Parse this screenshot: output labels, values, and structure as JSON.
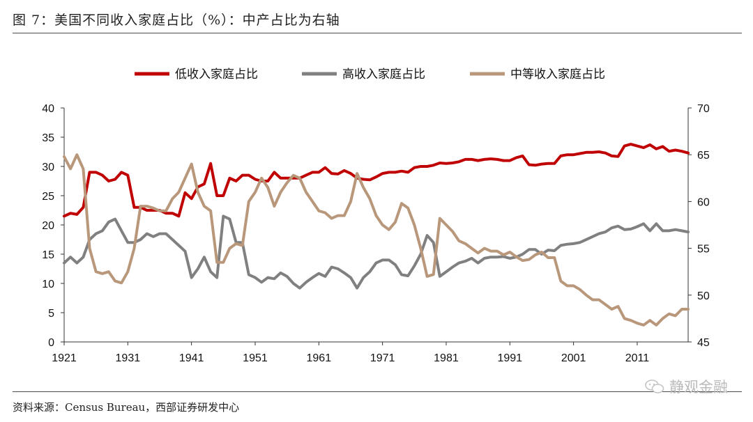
{
  "header": {
    "title": "图 7：美国不同收入家庭占比（%）：中产占比为右轴"
  },
  "footer": {
    "source": "资料来源：Census Bureau，西部证券研发中心",
    "watermark": "静观金融"
  },
  "chart_data": {
    "type": "line",
    "title": "美国不同收入家庭占比（%）：中产占比为右轴",
    "x_ticks": [
      "1921",
      "1931",
      "1941",
      "1951",
      "1961",
      "1971",
      "1981",
      "1991",
      "2001",
      "2011"
    ],
    "xlim": [
      1921,
      2019
    ],
    "y_left": {
      "min": 0,
      "max": 40,
      "ticks": [
        "0",
        "5",
        "10",
        "15",
        "20",
        "25",
        "30",
        "35",
        "40"
      ]
    },
    "y_right": {
      "min": 45,
      "max": 70,
      "ticks": [
        "45",
        "50",
        "55",
        "60",
        "65",
        "70"
      ]
    },
    "grid": false,
    "legend_position": "top",
    "series": [
      {
        "name": "低收入家庭占比",
        "axis": "left",
        "color": "#c00000",
        "points": [
          [
            1921,
            21.5
          ],
          [
            1922,
            22
          ],
          [
            1923,
            21.8
          ],
          [
            1924,
            23
          ],
          [
            1925,
            29
          ],
          [
            1926,
            29
          ],
          [
            1927,
            28.5
          ],
          [
            1928,
            27.5
          ],
          [
            1929,
            27.8
          ],
          [
            1930,
            29
          ],
          [
            1931,
            28.5
          ],
          [
            1932,
            23
          ],
          [
            1933,
            23
          ],
          [
            1934,
            22.5
          ],
          [
            1935,
            22.5
          ],
          [
            1936,
            22.5
          ],
          [
            1937,
            22
          ],
          [
            1938,
            22
          ],
          [
            1939,
            21.5
          ],
          [
            1940,
            25.5
          ],
          [
            1941,
            24.5
          ],
          [
            1942,
            26.5
          ],
          [
            1943,
            27
          ],
          [
            1944,
            30.5
          ],
          [
            1945,
            25
          ],
          [
            1946,
            25
          ],
          [
            1947,
            28
          ],
          [
            1948,
            27.5
          ],
          [
            1949,
            28.5
          ],
          [
            1950,
            28.5
          ],
          [
            1951,
            27.8
          ],
          [
            1952,
            27.5
          ],
          [
            1953,
            27.5
          ],
          [
            1954,
            29
          ],
          [
            1955,
            28
          ],
          [
            1956,
            28
          ],
          [
            1957,
            28
          ],
          [
            1958,
            28
          ],
          [
            1959,
            28.5
          ],
          [
            1960,
            29
          ],
          [
            1961,
            29
          ],
          [
            1962,
            29.8
          ],
          [
            1963,
            28.8
          ],
          [
            1964,
            28.7
          ],
          [
            1965,
            29.3
          ],
          [
            1966,
            28.8
          ],
          [
            1967,
            28
          ],
          [
            1968,
            27.8
          ],
          [
            1969,
            27.7
          ],
          [
            1970,
            28.2
          ],
          [
            1971,
            28.8
          ],
          [
            1972,
            29
          ],
          [
            1973,
            29
          ],
          [
            1974,
            29.2
          ],
          [
            1975,
            29
          ],
          [
            1976,
            29.8
          ],
          [
            1977,
            30
          ],
          [
            1978,
            30
          ],
          [
            1979,
            30.2
          ],
          [
            1980,
            30.6
          ],
          [
            1981,
            30.5
          ],
          [
            1982,
            30.6
          ],
          [
            1983,
            30.8
          ],
          [
            1984,
            31.2
          ],
          [
            1985,
            31.2
          ],
          [
            1986,
            31
          ],
          [
            1987,
            31.2
          ],
          [
            1988,
            31.3
          ],
          [
            1989,
            31.2
          ],
          [
            1990,
            31
          ],
          [
            1991,
            31
          ],
          [
            1992,
            31.5
          ],
          [
            1993,
            31.8
          ],
          [
            1994,
            30.3
          ],
          [
            1995,
            30.2
          ],
          [
            1996,
            30.4
          ],
          [
            1997,
            30.5
          ],
          [
            1998,
            30.5
          ],
          [
            1999,
            31.8
          ],
          [
            2000,
            32
          ],
          [
            2001,
            32
          ],
          [
            2002,
            32.2
          ],
          [
            2003,
            32.4
          ],
          [
            2004,
            32.4
          ],
          [
            2005,
            32.5
          ],
          [
            2006,
            32.3
          ],
          [
            2007,
            31.8
          ],
          [
            2008,
            31.7
          ],
          [
            2009,
            33.5
          ],
          [
            2010,
            33.8
          ],
          [
            2011,
            33.5
          ],
          [
            2012,
            33.2
          ],
          [
            2013,
            33.7
          ],
          [
            2014,
            33
          ],
          [
            2015,
            33.4
          ],
          [
            2016,
            32.6
          ],
          [
            2017,
            32.8
          ],
          [
            2018,
            32.6
          ],
          [
            2019,
            32.3
          ]
        ]
      },
      {
        "name": "高收入家庭占比",
        "axis": "left",
        "color": "#808080",
        "points": [
          [
            1921,
            13.5
          ],
          [
            1922,
            14.5
          ],
          [
            1923,
            13.5
          ],
          [
            1924,
            14.5
          ],
          [
            1925,
            17.5
          ],
          [
            1926,
            18.5
          ],
          [
            1927,
            19
          ],
          [
            1928,
            20.5
          ],
          [
            1929,
            21
          ],
          [
            1930,
            19
          ],
          [
            1931,
            17
          ],
          [
            1932,
            17
          ],
          [
            1933,
            17.5
          ],
          [
            1934,
            18.5
          ],
          [
            1935,
            18
          ],
          [
            1936,
            18.5
          ],
          [
            1937,
            18.5
          ],
          [
            1938,
            17.5
          ],
          [
            1939,
            16.5
          ],
          [
            1940,
            15.5
          ],
          [
            1941,
            11
          ],
          [
            1942,
            12.5
          ],
          [
            1943,
            14.5
          ],
          [
            1944,
            12
          ],
          [
            1945,
            11
          ],
          [
            1946,
            21.5
          ],
          [
            1947,
            21
          ],
          [
            1948,
            17
          ],
          [
            1949,
            17
          ],
          [
            1950,
            11.5
          ],
          [
            1951,
            11
          ],
          [
            1952,
            10.2
          ],
          [
            1953,
            11
          ],
          [
            1954,
            10.8
          ],
          [
            1955,
            11.8
          ],
          [
            1956,
            11.2
          ],
          [
            1957,
            10
          ],
          [
            1958,
            9.2
          ],
          [
            1959,
            10.2
          ],
          [
            1960,
            11
          ],
          [
            1961,
            11.7
          ],
          [
            1962,
            11.2
          ],
          [
            1963,
            12.8
          ],
          [
            1964,
            12.5
          ],
          [
            1965,
            11.8
          ],
          [
            1966,
            11
          ],
          [
            1967,
            9.2
          ],
          [
            1968,
            11
          ],
          [
            1969,
            12
          ],
          [
            1970,
            13.5
          ],
          [
            1971,
            14
          ],
          [
            1972,
            14
          ],
          [
            1973,
            13.2
          ],
          [
            1974,
            11.5
          ],
          [
            1975,
            11.3
          ],
          [
            1976,
            13
          ],
          [
            1977,
            15
          ],
          [
            1978,
            18.2
          ],
          [
            1979,
            17
          ],
          [
            1980,
            11.2
          ],
          [
            1981,
            12
          ],
          [
            1982,
            12.8
          ],
          [
            1983,
            13.5
          ],
          [
            1984,
            13.8
          ],
          [
            1985,
            14.3
          ],
          [
            1986,
            13.5
          ],
          [
            1987,
            14.3
          ],
          [
            1988,
            14.5
          ],
          [
            1989,
            14.5
          ],
          [
            1990,
            14.6
          ],
          [
            1991,
            14.3
          ],
          [
            1992,
            14.5
          ],
          [
            1993,
            15
          ],
          [
            1994,
            15.8
          ],
          [
            1995,
            15.8
          ],
          [
            1996,
            15
          ],
          [
            1997,
            15.7
          ],
          [
            1998,
            15.6
          ],
          [
            1999,
            16.5
          ],
          [
            2000,
            16.7
          ],
          [
            2001,
            16.8
          ],
          [
            2002,
            17
          ],
          [
            2003,
            17.5
          ],
          [
            2004,
            18
          ],
          [
            2005,
            18.5
          ],
          [
            2006,
            18.8
          ],
          [
            2007,
            19.5
          ],
          [
            2008,
            19.8
          ],
          [
            2009,
            19.2
          ],
          [
            2010,
            19.3
          ],
          [
            2011,
            19.7
          ],
          [
            2012,
            20.2
          ],
          [
            2013,
            19
          ],
          [
            2014,
            20.2
          ],
          [
            2015,
            19
          ],
          [
            2016,
            19
          ],
          [
            2017,
            19.2
          ],
          [
            2018,
            19
          ],
          [
            2019,
            18.8
          ]
        ]
      },
      {
        "name": "中等收入家庭占比",
        "axis": "right",
        "color": "#b8977a",
        "points": [
          [
            1921,
            64.8
          ],
          [
            1922,
            63.5
          ],
          [
            1923,
            65
          ],
          [
            1924,
            63.5
          ],
          [
            1925,
            55
          ],
          [
            1926,
            52.5
          ],
          [
            1927,
            52.3
          ],
          [
            1928,
            52.5
          ],
          [
            1929,
            51.5
          ],
          [
            1930,
            51.3
          ],
          [
            1931,
            52.5
          ],
          [
            1932,
            55
          ],
          [
            1933,
            59.5
          ],
          [
            1934,
            59.5
          ],
          [
            1935,
            59.3
          ],
          [
            1936,
            59
          ],
          [
            1937,
            59
          ],
          [
            1938,
            60.3
          ],
          [
            1939,
            61
          ],
          [
            1940,
            62.5
          ],
          [
            1941,
            64
          ],
          [
            1942,
            61
          ],
          [
            1943,
            59.5
          ],
          [
            1944,
            59
          ],
          [
            1945,
            53.5
          ],
          [
            1946,
            53.5
          ],
          [
            1947,
            55
          ],
          [
            1948,
            55.5
          ],
          [
            1949,
            55.3
          ],
          [
            1950,
            60
          ],
          [
            1951,
            61
          ],
          [
            1952,
            62.5
          ],
          [
            1953,
            61.5
          ],
          [
            1954,
            59.5
          ],
          [
            1955,
            61
          ],
          [
            1956,
            62
          ],
          [
            1957,
            62.8
          ],
          [
            1958,
            62.5
          ],
          [
            1959,
            61
          ],
          [
            1960,
            60
          ],
          [
            1961,
            59
          ],
          [
            1962,
            58.8
          ],
          [
            1963,
            58.2
          ],
          [
            1964,
            58.5
          ],
          [
            1965,
            58.5
          ],
          [
            1966,
            60
          ],
          [
            1967,
            63
          ],
          [
            1968,
            61.5
          ],
          [
            1969,
            60.3
          ],
          [
            1970,
            58.5
          ],
          [
            1971,
            57.5
          ],
          [
            1972,
            57
          ],
          [
            1973,
            57.8
          ],
          [
            1974,
            59.8
          ],
          [
            1975,
            59.3
          ],
          [
            1976,
            57.5
          ],
          [
            1977,
            55
          ],
          [
            1978,
            52
          ],
          [
            1979,
            52.2
          ],
          [
            1980,
            58.2
          ],
          [
            1981,
            57.5
          ],
          [
            1982,
            56.8
          ],
          [
            1983,
            55.8
          ],
          [
            1984,
            55.5
          ],
          [
            1985,
            55
          ],
          [
            1986,
            54.5
          ],
          [
            1987,
            55
          ],
          [
            1988,
            54.7
          ],
          [
            1989,
            54.7
          ],
          [
            1990,
            54.3
          ],
          [
            1991,
            54.6
          ],
          [
            1992,
            54.1
          ],
          [
            1993,
            53.7
          ],
          [
            1994,
            53.8
          ],
          [
            1995,
            54.3
          ],
          [
            1996,
            54.6
          ],
          [
            1997,
            54
          ],
          [
            1998,
            54
          ],
          [
            1999,
            51.5
          ],
          [
            2000,
            51
          ],
          [
            2001,
            51
          ],
          [
            2002,
            50.6
          ],
          [
            2003,
            50
          ],
          [
            2004,
            49.5
          ],
          [
            2005,
            49.5
          ],
          [
            2006,
            49
          ],
          [
            2007,
            48.5
          ],
          [
            2008,
            48.8
          ],
          [
            2009,
            47.5
          ],
          [
            2010,
            47.3
          ],
          [
            2011,
            47
          ],
          [
            2012,
            46.8
          ],
          [
            2013,
            47.3
          ],
          [
            2014,
            46.8
          ],
          [
            2015,
            47.5
          ],
          [
            2016,
            48
          ],
          [
            2017,
            47.8
          ],
          [
            2018,
            48.5
          ],
          [
            2019,
            48.5
          ]
        ]
      }
    ]
  }
}
